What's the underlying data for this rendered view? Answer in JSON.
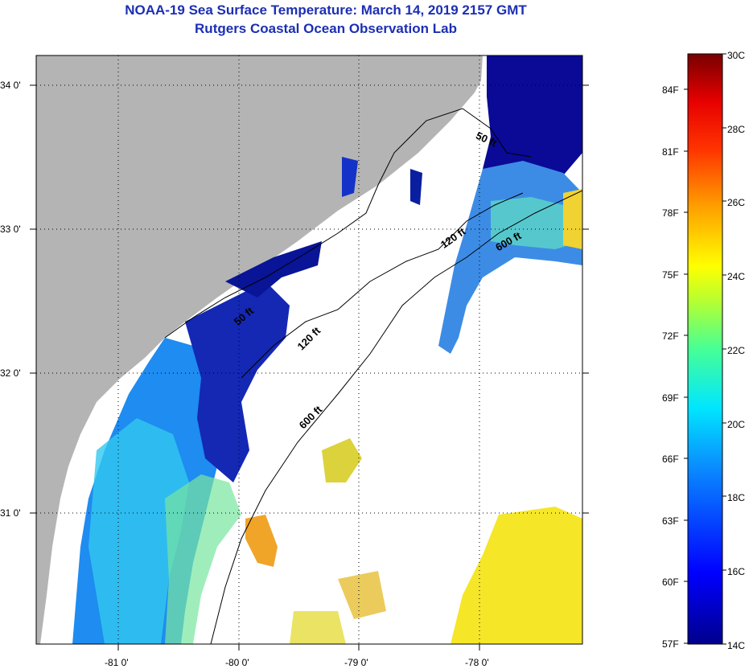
{
  "header": {
    "title": "NOAA-19 Sea Surface Temperature:  March 14, 2019 2157 GMT",
    "subtitle": "Rutgers Coastal Ocean Observation Lab"
  },
  "map": {
    "lon_range": [
      -81.68,
      -77.1
    ],
    "lat_range": [
      30.2,
      34.25
    ],
    "lon_ticks": [
      {
        "value": -81,
        "label": "-81 0'"
      },
      {
        "value": -80,
        "label": "-80 0'"
      },
      {
        "value": -79,
        "label": "-79 0'"
      },
      {
        "value": -78,
        "label": "-78 0'"
      }
    ],
    "lat_ticks": [
      {
        "value": 34,
        "label": "34 0'"
      },
      {
        "value": 33,
        "label": "33 0'"
      },
      {
        "value": 32,
        "label": "32 0'"
      },
      {
        "value": 31,
        "label": "31 0'"
      }
    ],
    "contour_labels": [
      {
        "text": "50 ft"
      },
      {
        "text": "120 ft"
      },
      {
        "text": "600 ft"
      },
      {
        "text": "50 ft"
      },
      {
        "text": "120 ft"
      },
      {
        "text": "600 ft"
      }
    ],
    "colors": {
      "land": "#b4b4b4",
      "cloud": "#ffffff",
      "cold": "#00008c",
      "warm": "#780000"
    }
  },
  "colorbar": {
    "celsius_labels": [
      "30C",
      "28C",
      "26C",
      "24C",
      "22C",
      "20C",
      "18C",
      "16C",
      "14C"
    ],
    "fahrenheit_labels": [
      "84F",
      "81F",
      "78F",
      "75F",
      "72F",
      "69F",
      "66F",
      "63F",
      "60F",
      "57F"
    ],
    "range_c": [
      14,
      30
    ]
  }
}
